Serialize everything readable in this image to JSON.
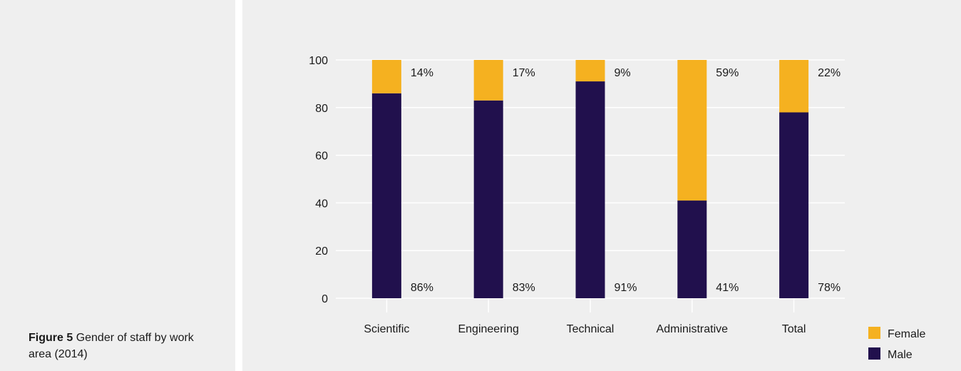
{
  "caption": {
    "figure_label": "Figure 5",
    "text": "Gender of staff by work area (2014)"
  },
  "colors": {
    "female": "#f5b120",
    "male": "#21104d",
    "panel_bg": "#efefef",
    "grid": "#ffffff"
  },
  "chart_data": {
    "type": "bar",
    "stacked": true,
    "categories": [
      "Scientific",
      "Engineering",
      "Technical",
      "Administrative",
      "Total"
    ],
    "series": [
      {
        "name": "Male",
        "values": [
          86,
          83,
          91,
          41,
          78
        ],
        "labels": [
          "86%",
          "83%",
          "91%",
          "41%",
          "78%"
        ]
      },
      {
        "name": "Female",
        "values": [
          14,
          17,
          9,
          59,
          22
        ],
        "labels": [
          "14%",
          "17%",
          "9%",
          "59%",
          "22%"
        ]
      }
    ],
    "yticks": [
      0,
      20,
      40,
      60,
      80,
      100
    ],
    "ylim": [
      0,
      100
    ],
    "grid": true,
    "legend_position": "bottom-right",
    "legend": [
      "Female",
      "Male"
    ]
  }
}
